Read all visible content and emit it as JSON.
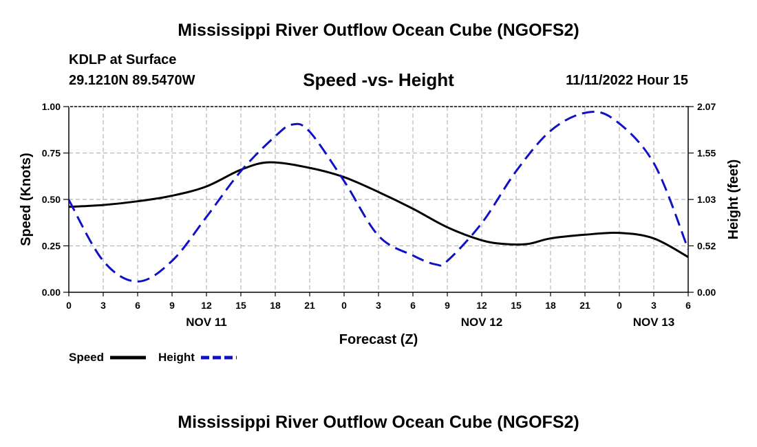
{
  "header": {
    "title": "Mississippi River Outflow Ocean Cube (NGOFS2)",
    "station": "KDLP at Surface",
    "coords": "29.1210N  89.5470W",
    "subtitle": "Speed -vs- Height",
    "datetime": "11/11/2022 Hour 15"
  },
  "footer": {
    "title": "Mississippi River Outflow Ocean Cube (NGOFS2)"
  },
  "chart_data": {
    "type": "line",
    "title": "Speed -vs- Height",
    "xlabel": "Forecast (Z)",
    "ylabel_left": "Speed (Knots)",
    "ylabel_right": "Height (feet)",
    "xlim": [
      0,
      54
    ],
    "ylim_left": [
      0,
      1.0
    ],
    "ylim_right": [
      0,
      2.07
    ],
    "grid": true,
    "x_tick_values": [
      0,
      3,
      6,
      9,
      12,
      15,
      18,
      21,
      24,
      27,
      30,
      33,
      36,
      39,
      42,
      45,
      48,
      51,
      54
    ],
    "x_tick_labels": [
      "0",
      "3",
      "6",
      "9",
      "12",
      "15",
      "18",
      "21",
      "0",
      "3",
      "6",
      "9",
      "12",
      "15",
      "18",
      "21",
      "0",
      "3",
      "6"
    ],
    "date_labels": [
      {
        "x": 12,
        "label": "NOV 11"
      },
      {
        "x": 36,
        "label": "NOV 12"
      },
      {
        "x": 51,
        "label": "NOV 13"
      }
    ],
    "y_left_ticks": [
      "0.00",
      "0.25",
      "0.50",
      "0.75",
      "1.00"
    ],
    "y_right_ticks": [
      "0.00",
      "0.52",
      "1.03",
      "1.55",
      "2.07"
    ],
    "legend_position": "bottom-left",
    "series": [
      {
        "name": "Speed",
        "axis": "left",
        "color": "#000000",
        "style": "solid",
        "x": [
          0,
          3,
          6,
          9,
          12,
          15,
          17.5,
          21,
          24,
          27,
          30,
          33,
          36,
          38,
          40,
          42,
          45,
          48,
          51,
          54
        ],
        "values": [
          0.46,
          0.47,
          0.49,
          0.52,
          0.57,
          0.66,
          0.7,
          0.67,
          0.62,
          0.54,
          0.45,
          0.35,
          0.28,
          0.26,
          0.26,
          0.29,
          0.31,
          0.32,
          0.29,
          0.19
        ]
      },
      {
        "name": "Height",
        "axis": "right",
        "color": "#1010c8",
        "style": "dashed",
        "x": [
          0,
          3,
          6,
          9,
          12,
          15,
          18,
          19.5,
          21,
          24,
          27,
          30,
          32,
          33,
          36,
          39,
          42,
          45,
          47.5,
          51,
          54
        ],
        "values": [
          1.03,
          0.35,
          0.12,
          0.35,
          0.84,
          1.35,
          1.74,
          1.87,
          1.79,
          1.24,
          0.63,
          0.41,
          0.31,
          0.35,
          0.77,
          1.35,
          1.8,
          2.0,
          1.93,
          1.44,
          0.48
        ]
      }
    ]
  }
}
